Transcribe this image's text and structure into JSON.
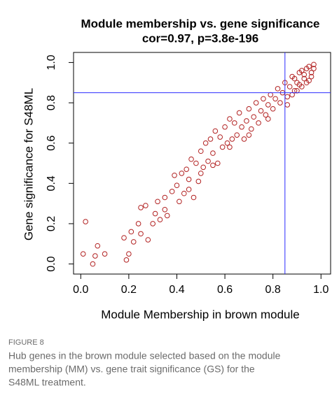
{
  "chart_data": {
    "type": "scatter",
    "title": "Module membership vs. gene significance",
    "subtitle": "cor=0.97, p=3.8e-196",
    "x_label": "Module Membership in brown module",
    "y_label": "Gene significance for S48ML",
    "xlim": [
      -0.03,
      1.04
    ],
    "ylim": [
      -0.05,
      1.05
    ],
    "xticks": [
      {
        "value": 0,
        "label": "0.0"
      },
      {
        "value": 0.2,
        "label": "0.2"
      },
      {
        "value": 0.4,
        "label": "0.4"
      },
      {
        "value": 0.6,
        "label": "0.6"
      },
      {
        "value": 0.8,
        "label": "0.8"
      },
      {
        "value": 1,
        "label": "1.0"
      }
    ],
    "yticks": [
      {
        "value": 0,
        "label": "0.0"
      },
      {
        "value": 0.2,
        "label": "0.2"
      },
      {
        "value": 0.4,
        "label": "0.4"
      },
      {
        "value": 0.6,
        "label": "0.6"
      },
      {
        "value": 0.8,
        "label": "0.8"
      },
      {
        "value": 1,
        "label": "1.0"
      }
    ],
    "hline": 0.85,
    "vline": 0.85,
    "line_color": "#2b2bff",
    "series": [
      {
        "color": "#b22222",
        "x": [
          0.01,
          0.02,
          0.05,
          0.06,
          0.07,
          0.1,
          0.18,
          0.19,
          0.2,
          0.21,
          0.22,
          0.24,
          0.25,
          0.27,
          0.28,
          0.3,
          0.31,
          0.32,
          0.33,
          0.35,
          0.36,
          0.38,
          0.39,
          0.4,
          0.41,
          0.42,
          0.43,
          0.44,
          0.45,
          0.46,
          0.47,
          0.48,
          0.49,
          0.5,
          0.51,
          0.52,
          0.53,
          0.54,
          0.55,
          0.56,
          0.57,
          0.58,
          0.59,
          0.6,
          0.61,
          0.62,
          0.63,
          0.64,
          0.65,
          0.66,
          0.67,
          0.68,
          0.69,
          0.7,
          0.71,
          0.72,
          0.73,
          0.74,
          0.75,
          0.76,
          0.77,
          0.78,
          0.79,
          0.8,
          0.81,
          0.82,
          0.83,
          0.84,
          0.85,
          0.86,
          0.87,
          0.88,
          0.89,
          0.9,
          0.91,
          0.92,
          0.93,
          0.94,
          0.95,
          0.96,
          0.97,
          0.86,
          0.88,
          0.9,
          0.92,
          0.94,
          0.95,
          0.96,
          0.97,
          0.89,
          0.91,
          0.93,
          0.55,
          0.45,
          0.35,
          0.62,
          0.7,
          0.78,
          0.25,
          0.5
        ],
        "values": [
          0.05,
          0.21,
          0.0,
          0.04,
          0.09,
          0.05,
          0.13,
          0.02,
          0.05,
          0.16,
          0.11,
          0.2,
          0.15,
          0.29,
          0.12,
          0.2,
          0.25,
          0.31,
          0.22,
          0.33,
          0.24,
          0.36,
          0.44,
          0.39,
          0.31,
          0.45,
          0.35,
          0.47,
          0.42,
          0.52,
          0.33,
          0.5,
          0.41,
          0.56,
          0.48,
          0.6,
          0.51,
          0.62,
          0.55,
          0.66,
          0.5,
          0.63,
          0.58,
          0.68,
          0.6,
          0.72,
          0.62,
          0.7,
          0.64,
          0.75,
          0.68,
          0.62,
          0.71,
          0.77,
          0.67,
          0.73,
          0.8,
          0.7,
          0.76,
          0.82,
          0.74,
          0.79,
          0.84,
          0.77,
          0.82,
          0.87,
          0.8,
          0.85,
          0.9,
          0.83,
          0.88,
          0.93,
          0.86,
          0.9,
          0.95,
          0.88,
          0.92,
          0.97,
          0.91,
          0.95,
          0.99,
          0.79,
          0.84,
          0.86,
          0.96,
          0.9,
          0.98,
          0.93,
          0.97,
          0.92,
          0.89,
          0.94,
          0.49,
          0.37,
          0.27,
          0.58,
          0.64,
          0.72,
          0.28,
          0.45
        ]
      }
    ]
  },
  "caption": {
    "label": "FIGURE 8",
    "lines": [
      "Hub genes in the brown module selected based on the module",
      "membership (MM) vs. gene trait significance (GS) for the",
      "S48ML treatment."
    ]
  }
}
